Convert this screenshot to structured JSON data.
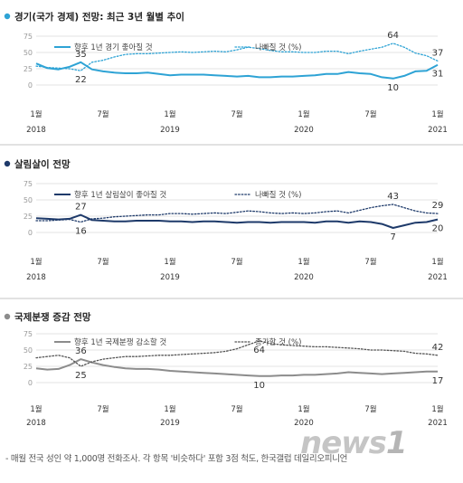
{
  "footnote": "- 매월 전국 성인 약 1,000명 전화조사. 각 항목 '비슷하다' 포함 3점 척도, 한국갤럽 데일리오피니언",
  "logo": "news1",
  "x_ticks": [
    {
      "month": "1월",
      "year": "2018",
      "index": 0
    },
    {
      "month": "7월",
      "year": "",
      "index": 6
    },
    {
      "month": "1월",
      "year": "2019",
      "index": 12
    },
    {
      "month": "7월",
      "year": "",
      "index": 18
    },
    {
      "month": "1월",
      "year": "2020",
      "index": 24
    },
    {
      "month": "7월",
      "year": "",
      "index": 30
    },
    {
      "month": "1월",
      "year": "2021",
      "index": 36
    }
  ],
  "chart_data": [
    {
      "type": "line",
      "title": "경기(국가 경제) 전망:  최근 3년 월별 추이",
      "accent": "#2ea3d5",
      "ylim": [
        0,
        75
      ],
      "yticks": [
        0,
        25,
        50,
        75
      ],
      "grid": true,
      "x": [
        "2018-01",
        "2018-02",
        "2018-03",
        "2018-04",
        "2018-05",
        "2018-06",
        "2018-07",
        "2018-08",
        "2018-09",
        "2018-10",
        "2018-11",
        "2018-12",
        "2019-01",
        "2019-02",
        "2019-03",
        "2019-04",
        "2019-05",
        "2019-06",
        "2019-07",
        "2019-08",
        "2019-09",
        "2019-10",
        "2019-11",
        "2019-12",
        "2020-01",
        "2020-02",
        "2020-03",
        "2020-04",
        "2020-05",
        "2020-06",
        "2020-07",
        "2020-08",
        "2020-09",
        "2020-10",
        "2020-11",
        "2020-12",
        "2021-01"
      ],
      "series": [
        {
          "name": "향후 1년 경기 좋아질 것",
          "style": "solid",
          "color": "#2ea3d5",
          "values": [
            33,
            26,
            24,
            28,
            35,
            24,
            21,
            19,
            18,
            18,
            19,
            17,
            15,
            16,
            16,
            16,
            15,
            14,
            13,
            14,
            12,
            12,
            13,
            13,
            14,
            15,
            17,
            17,
            20,
            18,
            17,
            12,
            10,
            14,
            21,
            22,
            31
          ]
        },
        {
          "name": "나빠질 것 (%)",
          "style": "dotted",
          "color": "#2ea3d5",
          "values": [
            29,
            27,
            26,
            25,
            22,
            35,
            38,
            43,
            47,
            48,
            48,
            49,
            50,
            51,
            50,
            51,
            52,
            51,
            54,
            58,
            56,
            53,
            51,
            51,
            50,
            50,
            52,
            52,
            48,
            52,
            55,
            58,
            64,
            58,
            49,
            45,
            37
          ]
        }
      ],
      "labels": [
        {
          "series": 0,
          "i": 4,
          "text": "35",
          "pos": "above"
        },
        {
          "series": 1,
          "i": 4,
          "text": "22",
          "pos": "below"
        },
        {
          "series": 1,
          "i": 32,
          "text": "64",
          "pos": "above"
        },
        {
          "series": 0,
          "i": 32,
          "text": "10",
          "pos": "below"
        },
        {
          "series": 1,
          "i": 36,
          "text": "37",
          "pos": "above"
        },
        {
          "series": 0,
          "i": 36,
          "text": "31",
          "pos": "below"
        }
      ]
    },
    {
      "type": "line",
      "title": "살림살이 전망",
      "accent": "#1e3a6a",
      "ylim": [
        0,
        75
      ],
      "yticks": [
        0,
        25,
        50,
        75
      ],
      "grid": true,
      "x": [
        "2018-01",
        "2018-02",
        "2018-03",
        "2018-04",
        "2018-05",
        "2018-06",
        "2018-07",
        "2018-08",
        "2018-09",
        "2018-10",
        "2018-11",
        "2018-12",
        "2019-01",
        "2019-02",
        "2019-03",
        "2019-04",
        "2019-05",
        "2019-06",
        "2019-07",
        "2019-08",
        "2019-09",
        "2019-10",
        "2019-11",
        "2019-12",
        "2020-01",
        "2020-02",
        "2020-03",
        "2020-04",
        "2020-05",
        "2020-06",
        "2020-07",
        "2020-08",
        "2020-09",
        "2020-10",
        "2020-11",
        "2020-12",
        "2021-01"
      ],
      "series": [
        {
          "name": "향후 1년 살림살이 좋아질 것",
          "style": "solid",
          "color": "#1e3a6a",
          "values": [
            22,
            21,
            20,
            21,
            27,
            19,
            18,
            17,
            17,
            18,
            18,
            18,
            17,
            17,
            16,
            17,
            17,
            16,
            15,
            16,
            16,
            15,
            16,
            16,
            16,
            15,
            17,
            17,
            15,
            17,
            16,
            13,
            7,
            11,
            15,
            16,
            20
          ]
        },
        {
          "name": "나빠질 것 (%)",
          "style": "dotted",
          "color": "#1e3a6a",
          "values": [
            18,
            18,
            19,
            20,
            16,
            21,
            22,
            24,
            25,
            26,
            27,
            27,
            29,
            29,
            28,
            29,
            30,
            29,
            31,
            33,
            32,
            30,
            29,
            30,
            29,
            30,
            32,
            33,
            30,
            34,
            38,
            41,
            43,
            38,
            33,
            30,
            29
          ]
        }
      ],
      "labels": [
        {
          "series": 0,
          "i": 4,
          "text": "27",
          "pos": "above"
        },
        {
          "series": 1,
          "i": 4,
          "text": "16",
          "pos": "below"
        },
        {
          "series": 1,
          "i": 32,
          "text": "43",
          "pos": "above"
        },
        {
          "series": 0,
          "i": 32,
          "text": "7",
          "pos": "below"
        },
        {
          "series": 1,
          "i": 36,
          "text": "29",
          "pos": "above"
        },
        {
          "series": 0,
          "i": 36,
          "text": "20",
          "pos": "below"
        }
      ]
    },
    {
      "type": "line",
      "title": "국제분쟁 증감 전망",
      "accent": "#8c8c8c",
      "ylim": [
        0,
        75
      ],
      "yticks": [
        0,
        25,
        50,
        75
      ],
      "grid": true,
      "x": [
        "2018-01",
        "2018-02",
        "2018-03",
        "2018-04",
        "2018-05",
        "2018-06",
        "2018-07",
        "2018-08",
        "2018-09",
        "2018-10",
        "2018-11",
        "2018-12",
        "2019-01",
        "2019-02",
        "2019-03",
        "2019-04",
        "2019-05",
        "2019-06",
        "2019-07",
        "2019-08",
        "2019-09",
        "2019-10",
        "2019-11",
        "2019-12",
        "2020-01",
        "2020-02",
        "2020-03",
        "2020-04",
        "2020-05",
        "2020-06",
        "2020-07",
        "2020-08",
        "2020-09",
        "2020-10",
        "2020-11",
        "2020-12",
        "2021-01"
      ],
      "series": [
        {
          "name": "향후 1년 국제분쟁 감소할 것",
          "style": "solid",
          "color": "#8c8c8c",
          "values": [
            22,
            20,
            21,
            27,
            36,
            31,
            27,
            24,
            22,
            21,
            21,
            20,
            18,
            17,
            16,
            15,
            14,
            13,
            12,
            11,
            10,
            10,
            11,
            11,
            12,
            12,
            13,
            14,
            16,
            15,
            14,
            13,
            14,
            15,
            16,
            17,
            17
          ]
        },
        {
          "name": "증가할 것 (%)",
          "style": "dotted",
          "color": "#555555",
          "values": [
            38,
            40,
            42,
            38,
            25,
            32,
            36,
            38,
            40,
            40,
            41,
            42,
            42,
            43,
            44,
            45,
            46,
            48,
            52,
            58,
            64,
            60,
            58,
            57,
            56,
            55,
            55,
            54,
            53,
            52,
            50,
            50,
            49,
            48,
            45,
            44,
            42
          ]
        }
      ],
      "labels": [
        {
          "series": 0,
          "i": 4,
          "text": "36",
          "pos": "above"
        },
        {
          "series": 1,
          "i": 4,
          "text": "25",
          "pos": "below"
        },
        {
          "series": 1,
          "i": 20,
          "text": "64",
          "pos": "below"
        },
        {
          "series": 0,
          "i": 20,
          "text": "10",
          "pos": "below"
        },
        {
          "series": 1,
          "i": 36,
          "text": "42",
          "pos": "above"
        },
        {
          "series": 0,
          "i": 36,
          "text": "17",
          "pos": "below"
        }
      ]
    }
  ]
}
